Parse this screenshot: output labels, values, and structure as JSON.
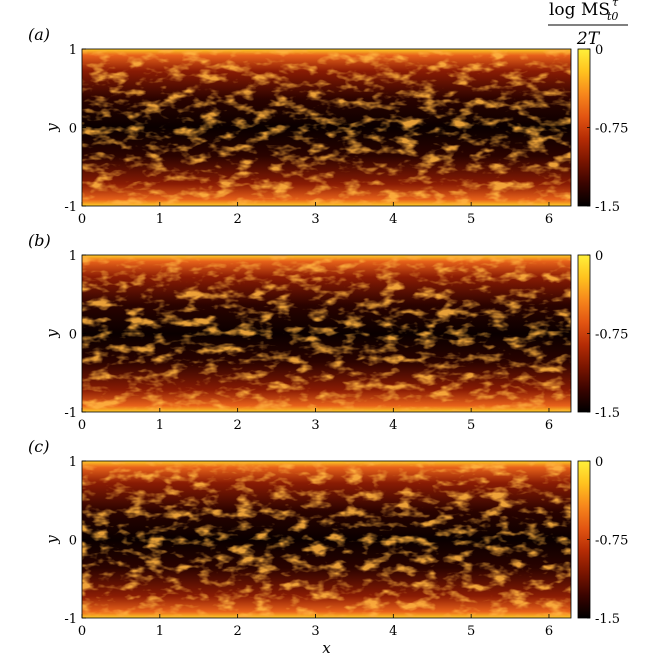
{
  "colorbar": {
    "title_numerator": "log MS",
    "title_super": "τ",
    "title_sub": "t0",
    "title_denominator": "2T",
    "ticks": [
      "0",
      "-0.75",
      "-1.5"
    ],
    "colors": [
      "#000000",
      "#3a0400",
      "#7a1500",
      "#b52c05",
      "#e25512",
      "#f7871c",
      "#ffc21f",
      "#fff03a"
    ]
  },
  "chart_data": [
    {
      "type": "heatmap",
      "panel_label": "(a)",
      "xlabel": "",
      "ylabel": "y",
      "xlim": [
        0,
        6.283
      ],
      "ylim": [
        -1,
        1
      ],
      "x_ticks": [
        "0",
        "1",
        "2",
        "3",
        "4",
        "5",
        "6"
      ],
      "y_ticks": [
        "-1",
        "0",
        "1"
      ],
      "colorbar_range": [
        -1.5,
        0
      ],
      "colormap": "hot",
      "description_values": {
        "wall_level": 0,
        "center_level": -1.5
      }
    },
    {
      "type": "heatmap",
      "panel_label": "(b)",
      "xlabel": "",
      "ylabel": "y",
      "xlim": [
        0,
        6.283
      ],
      "ylim": [
        -1,
        1
      ],
      "x_ticks": [
        "0",
        "1",
        "2",
        "3",
        "4",
        "5",
        "6"
      ],
      "y_ticks": [
        "-1",
        "0",
        "1"
      ],
      "colorbar_range": [
        -1.5,
        0
      ],
      "colormap": "hot",
      "description_values": {
        "wall_level": 0,
        "center_level": -1.5
      }
    },
    {
      "type": "heatmap",
      "panel_label": "(c)",
      "xlabel": "x",
      "ylabel": "y",
      "xlim": [
        0,
        6.283
      ],
      "ylim": [
        -1,
        1
      ],
      "x_ticks": [
        "0",
        "1",
        "2",
        "3",
        "4",
        "5",
        "6"
      ],
      "y_ticks": [
        "-1",
        "0",
        "1"
      ],
      "colorbar_range": [
        -1.5,
        0
      ],
      "colormap": "hot",
      "description_values": {
        "wall_level": 0,
        "center_level": -1.5
      }
    }
  ]
}
